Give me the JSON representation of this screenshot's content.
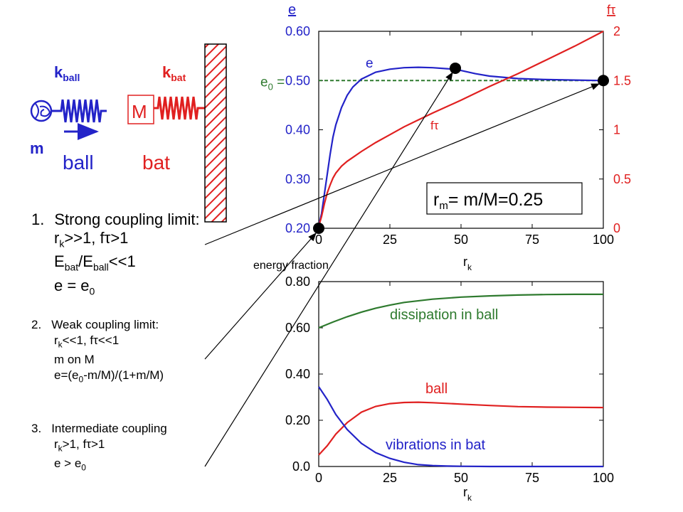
{
  "diagram": {
    "k_ball": "k",
    "k_ball_sub": "ball",
    "k_bat": "k",
    "k_bat_sub": "bat",
    "mass_M": "M",
    "mass_m": "m",
    "ball_label": "ball",
    "bat_label": "bat",
    "colors": {
      "blue": "#2323c8",
      "red": "#e02020",
      "green": "#2e7a2e"
    }
  },
  "list": {
    "item1": {
      "num": "1.",
      "title": "Strong coupling limit:",
      "l2a": "r",
      "l2sub": "k",
      "l2b": ">>1, f",
      "l2tau": "τ",
      "l2c": ">1",
      "l3a": "E",
      "l3sub1": "bat",
      "l3b": "/E",
      "l3sub2": "ball",
      "l3c": "<<1",
      "l4a": "e = e",
      "l4sub": "0"
    },
    "item2": {
      "num": "2.",
      "title": "Weak coupling limit:",
      "l2a": "r",
      "l2sub": "k",
      "l2b": "<<1, f",
      "l2tau": "τ",
      "l2c": "<<1",
      "l3": "m on M",
      "l4a": "e=(e",
      "l4sub": "0",
      "l4b": "-m/M)/(1+m/M)"
    },
    "item3": {
      "num": "3.",
      "title": "Intermediate coupling",
      "l2a": "r",
      "l2sub": "k",
      "l2b": ">1, f",
      "l2tau": "τ",
      "l2c": ">1",
      "l3a": "e > e",
      "l3sub": "0"
    }
  },
  "chart_data": [
    {
      "type": "line",
      "title": "",
      "xlabel": "r",
      "xlabel_sub": "k",
      "ylabel_left": "e",
      "ylabel_right": "fτ",
      "xlim": [
        0,
        100
      ],
      "ylim_left": [
        0.2,
        0.6
      ],
      "ylim_right": [
        0,
        2
      ],
      "xticks": [
        "0",
        "25",
        "50",
        "75",
        "100"
      ],
      "yticks_left": [
        "0.20",
        "0.30",
        "0.40",
        "0.50",
        "0.60"
      ],
      "yticks_right": [
        "0",
        "0.5",
        "1",
        "1.5",
        "2"
      ],
      "reference_line": {
        "label": "e",
        "label_sub": "0",
        "label_suffix": " =",
        "y": 0.5,
        "color": "#2e7a2e"
      },
      "annotation": {
        "text_a": "r",
        "text_sub": "m",
        "text_b": "= m/M=0.25"
      },
      "series": [
        {
          "name": "e",
          "axis": "left",
          "color": "#2323c8",
          "x": [
            0,
            1,
            2,
            3,
            4,
            5,
            6,
            8,
            10,
            12,
            15,
            20,
            25,
            30,
            35,
            40,
            45,
            48,
            55,
            60,
            70,
            80,
            90,
            100
          ],
          "y": [
            0.205,
            0.23,
            0.27,
            0.31,
            0.35,
            0.385,
            0.41,
            0.445,
            0.47,
            0.487,
            0.503,
            0.517,
            0.523,
            0.526,
            0.527,
            0.526,
            0.524,
            0.523,
            0.514,
            0.509,
            0.504,
            0.502,
            0.501,
            0.5
          ]
        },
        {
          "name": "fτ",
          "axis": "right",
          "color": "#e02020",
          "x": [
            0,
            1,
            2,
            3,
            4,
            5,
            6,
            8,
            10,
            12,
            15,
            20,
            25,
            30,
            35,
            40,
            50,
            60,
            70,
            80,
            90,
            100
          ],
          "y": [
            0.02,
            0.12,
            0.25,
            0.36,
            0.44,
            0.51,
            0.56,
            0.63,
            0.68,
            0.72,
            0.78,
            0.87,
            0.95,
            1.03,
            1.1,
            1.17,
            1.3,
            1.44,
            1.57,
            1.71,
            1.85,
            2.0
          ]
        }
      ],
      "markers": [
        {
          "x": 0,
          "y": 0.2
        },
        {
          "x": 48,
          "y": 0.525
        },
        {
          "x": 100,
          "y": 0.5
        }
      ]
    },
    {
      "type": "line",
      "title": "",
      "xlabel": "r",
      "xlabel_sub": "k",
      "ylabel": "energy fraction",
      "xlim": [
        0,
        100
      ],
      "ylim": [
        0,
        0.8
      ],
      "xticks": [
        "0",
        "25",
        "50",
        "75",
        "100"
      ],
      "yticks": [
        "0.0",
        "0.20",
        "0.40",
        "0.60",
        "0.80"
      ],
      "series": [
        {
          "name": "dissipation in ball",
          "color": "#2e7a2e",
          "x": [
            0,
            5,
            10,
            15,
            20,
            25,
            30,
            40,
            50,
            60,
            70,
            80,
            90,
            100
          ],
          "y": [
            0.6,
            0.625,
            0.648,
            0.668,
            0.685,
            0.698,
            0.71,
            0.724,
            0.733,
            0.738,
            0.742,
            0.744,
            0.745,
            0.745
          ]
        },
        {
          "name": "ball",
          "color": "#e02020",
          "x": [
            0,
            3,
            6,
            10,
            15,
            20,
            25,
            30,
            35,
            40,
            50,
            60,
            70,
            80,
            90,
            100
          ],
          "y": [
            0.05,
            0.09,
            0.14,
            0.19,
            0.235,
            0.26,
            0.272,
            0.277,
            0.278,
            0.276,
            0.27,
            0.264,
            0.259,
            0.257,
            0.256,
            0.255
          ]
        },
        {
          "name": "vibrations in bat",
          "color": "#2323c8",
          "x": [
            0,
            3,
            6,
            10,
            15,
            20,
            25,
            30,
            35,
            40,
            45,
            50,
            60,
            70,
            80,
            90,
            100
          ],
          "y": [
            0.345,
            0.29,
            0.225,
            0.16,
            0.1,
            0.06,
            0.035,
            0.018,
            0.008,
            0.004,
            0.002,
            0.001,
            0.0,
            0.0,
            0.0,
            0.0,
            0.0
          ]
        }
      ]
    }
  ]
}
